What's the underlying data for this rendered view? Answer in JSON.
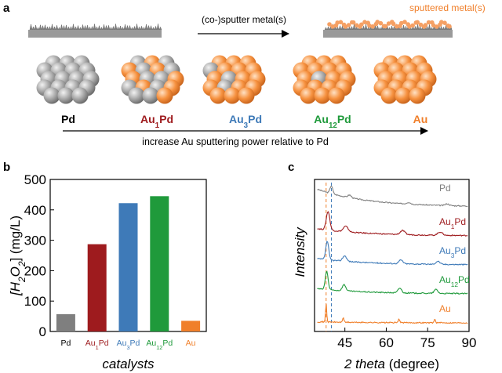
{
  "panel_a": {
    "label": "a",
    "arrow_label": "(co-)sputter metal(s)",
    "sputtered_label": "sputtered metal(s)",
    "bottom_arrow_label": "increase Au sputtering power relative to Pd",
    "catalysts": [
      {
        "base": "Pd",
        "sub": "",
        "suffix": "",
        "color": "#000000",
        "orange_fraction": 0
      },
      {
        "base": "Au",
        "sub": "1",
        "suffix": "Pd",
        "color": "#9e1b1e",
        "orange_fraction": 0.5
      },
      {
        "base": "Au",
        "sub": "3",
        "suffix": "Pd",
        "color": "#3e7ab8",
        "orange_fraction": 0.75
      },
      {
        "base": "Au",
        "sub": "12",
        "suffix": "Pd",
        "color": "#1f9a3b",
        "orange_fraction": 0.92
      },
      {
        "base": "Au",
        "sub": "",
        "suffix": "",
        "color": "#f07f2a",
        "orange_fraction": 1
      }
    ],
    "colors": {
      "pd_sphere": "#a8a8a8",
      "au_sphere": "#f5a064",
      "substrate": "#8f8f8f"
    }
  },
  "chart_data": [
    {
      "type": "bar",
      "panel": "b",
      "categories": [
        {
          "base": "Pd",
          "sub": "",
          "suffix": ""
        },
        {
          "base": "Au",
          "sub": "1",
          "suffix": "Pd"
        },
        {
          "base": "Au",
          "sub": "3",
          "suffix": "Pd"
        },
        {
          "base": "Au",
          "sub": "12",
          "suffix": "Pd"
        },
        {
          "base": "Au",
          "sub": "",
          "suffix": ""
        }
      ],
      "values": [
        57,
        287,
        422,
        445,
        35
      ],
      "colors": [
        "#7f7f7f",
        "#9e1b1e",
        "#3e7ab8",
        "#1f9a3b",
        "#f07f2a"
      ],
      "label_colors": [
        "#000000",
        "#9e1b1e",
        "#3e7ab8",
        "#1f9a3b",
        "#f07f2a"
      ],
      "ylabel_parts": {
        "open": "[H",
        "sub": "2",
        "mid": "O",
        "sub2": "2",
        "close": "] (mg/L)"
      },
      "xlabel": "catalysts",
      "ylim": [
        0,
        500
      ],
      "yticks": [
        0,
        100,
        200,
        300,
        400,
        500
      ]
    },
    {
      "type": "line",
      "panel": "c",
      "xlabel_italic": "2 theta",
      "xlabel_unit": "(degree)",
      "ylabel": "Intensity",
      "xlim": [
        34,
        90
      ],
      "xticks": [
        45,
        60,
        75,
        90
      ],
      "ref_lines": [
        {
          "x": 38.2,
          "color": "#f07f2a"
        },
        {
          "x": 40.1,
          "color": "#3e7ab8"
        }
      ],
      "series": [
        {
          "name_base": "Pd",
          "name_sub": "",
          "name_suffix": "",
          "color": "#808080",
          "offset": 4.0,
          "baseline": [
            0.85,
            0.0
          ],
          "peaks": [
            [
              40.1,
              0.35,
              0.7
            ],
            [
              46.7,
              0.12,
              0.9
            ],
            [
              68.1,
              0.08,
              1.0
            ],
            [
              82.1,
              0.08,
              1.0
            ]
          ]
        },
        {
          "name_base": "Au",
          "name_sub": "1",
          "name_suffix": "Pd",
          "color": "#9e1b1e",
          "offset": 3.0,
          "baseline": [
            0.35,
            0.0
          ],
          "peaks": [
            [
              38.9,
              0.85,
              0.9
            ],
            [
              45.3,
              0.25,
              1.2
            ],
            [
              65.9,
              0.18,
              1.2
            ],
            [
              79.5,
              0.15,
              1.2
            ]
          ]
        },
        {
          "name_base": "Au",
          "name_sub": "3",
          "name_suffix": "Pd",
          "color": "#3e7ab8",
          "offset": 2.0,
          "baseline": [
            0.3,
            0.0
          ],
          "peaks": [
            [
              38.6,
              0.85,
              0.75
            ],
            [
              44.9,
              0.25,
              1.0
            ],
            [
              65.3,
              0.17,
              1.0
            ],
            [
              78.7,
              0.14,
              1.0
            ]
          ]
        },
        {
          "name_base": "Au",
          "name_sub": "12",
          "name_suffix": "Pd",
          "color": "#1f9a3b",
          "offset": 1.0,
          "baseline": [
            0.25,
            0.0
          ],
          "peaks": [
            [
              38.4,
              0.85,
              0.7
            ],
            [
              44.7,
              0.28,
              0.9
            ],
            [
              64.9,
              0.22,
              0.9
            ],
            [
              78.0,
              0.18,
              0.9
            ]
          ]
        },
        {
          "name_base": "Au",
          "name_sub": "",
          "name_suffix": "",
          "color": "#f07f2a",
          "offset": 0.0,
          "baseline": [
            0.05,
            0.0
          ],
          "peaks": [
            [
              38.2,
              0.85,
              0.3
            ],
            [
              44.4,
              0.22,
              0.35
            ],
            [
              64.6,
              0.18,
              0.35
            ],
            [
              77.6,
              0.16,
              0.35
            ]
          ]
        }
      ]
    }
  ]
}
